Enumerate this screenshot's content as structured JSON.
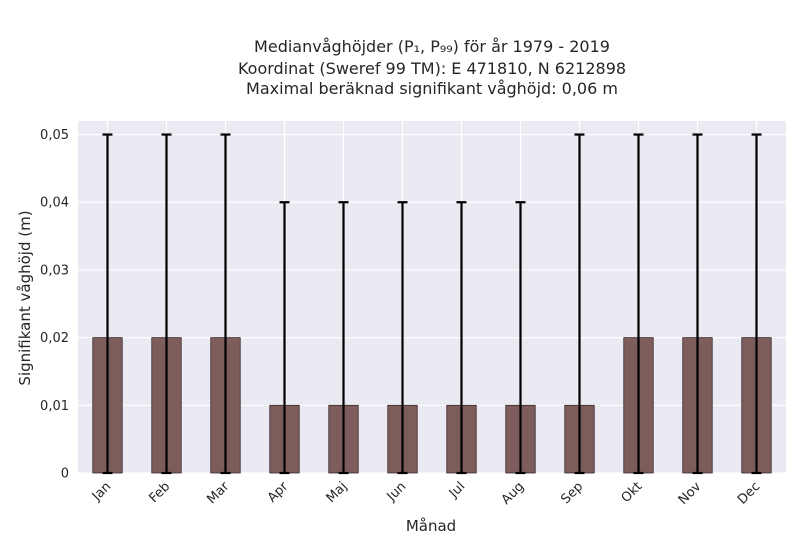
{
  "chart_data": {
    "type": "bar",
    "title_lines": [
      "Medianvåghöjder (P₁, P₉₉) för år 1979 - 2019",
      "Koordinat (Sweref 99 TM): E 471810, N 6212898",
      "Maximal beräknad signifikant våghöjd: 0,06 m"
    ],
    "xlabel": "Månad",
    "ylabel": "Signifikant våghöjd (m)",
    "categories": [
      "Jan",
      "Feb",
      "Mar",
      "Apr",
      "Maj",
      "Jun",
      "Jul",
      "Aug",
      "Sep",
      "Okt",
      "Nov",
      "Dec"
    ],
    "values": [
      0.02,
      0.02,
      0.02,
      0.01,
      0.01,
      0.01,
      0.01,
      0.01,
      0.01,
      0.02,
      0.02,
      0.02
    ],
    "err_low": [
      0,
      0,
      0,
      0,
      0,
      0,
      0,
      0,
      0,
      0,
      0,
      0
    ],
    "err_high": [
      0.05,
      0.05,
      0.05,
      0.04,
      0.04,
      0.04,
      0.04,
      0.04,
      0.05,
      0.05,
      0.05,
      0.05
    ],
    "ylim": [
      0,
      0.052
    ],
    "yticks": [
      0,
      0.01,
      0.02,
      0.03,
      0.04,
      0.05
    ],
    "ytick_labels": [
      "0",
      "0,01",
      "0,02",
      "0,03",
      "0,04",
      "0,05"
    ],
    "grid": true,
    "colors": {
      "plot_background": "#eaeaf2",
      "bar": "#7d5c5c",
      "error_bar": "#000000"
    }
  }
}
